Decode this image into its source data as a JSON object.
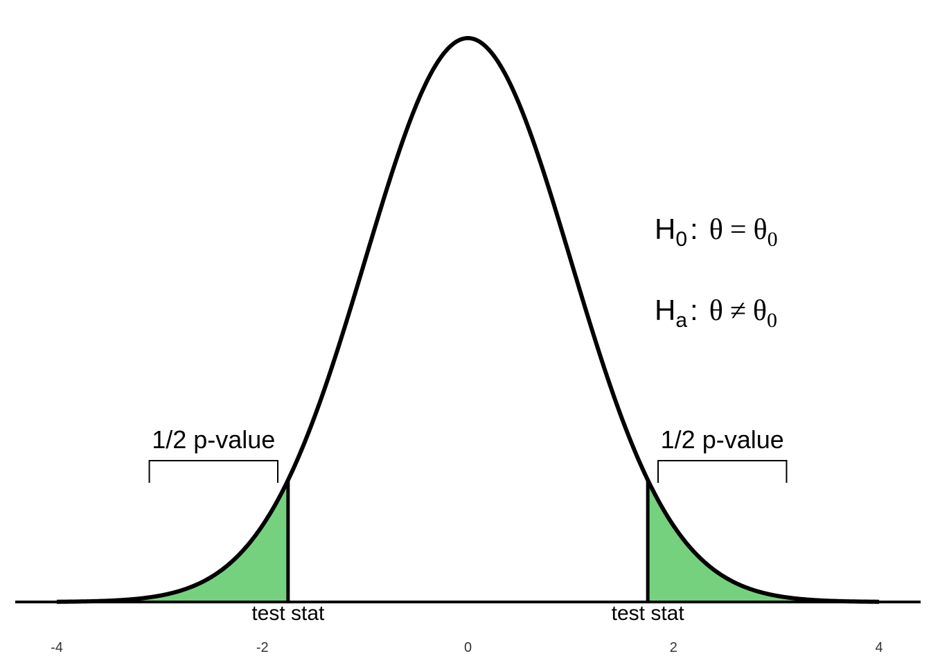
{
  "chart_data": {
    "type": "area",
    "title": "",
    "xlabel": "",
    "ylabel": "",
    "xlim": [
      -4,
      4
    ],
    "x_ticks": [
      -4,
      -2,
      0,
      2,
      4
    ],
    "grid": false,
    "distribution": "standard normal density",
    "test_statistics": [
      -1.75,
      1.75
    ],
    "shaded_regions": [
      {
        "from": -4,
        "to": -1.75,
        "label": "1/2 p-value"
      },
      {
        "from": 1.75,
        "to": 4,
        "label": "1/2 p-value"
      }
    ],
    "test_stat_label": "test stat",
    "fill_color": "#76d17f",
    "hypotheses": {
      "null": {
        "H": "H",
        "H_sub": "0",
        "colon": ":",
        "lhs": "θ",
        "op": "=",
        "rhs": "θ",
        "rhs_sub": "0"
      },
      "alt": {
        "H": "H",
        "H_sub": "a",
        "colon": ":",
        "lhs": "θ",
        "op": "≠",
        "rhs": "θ",
        "rhs_sub": "0"
      }
    }
  }
}
